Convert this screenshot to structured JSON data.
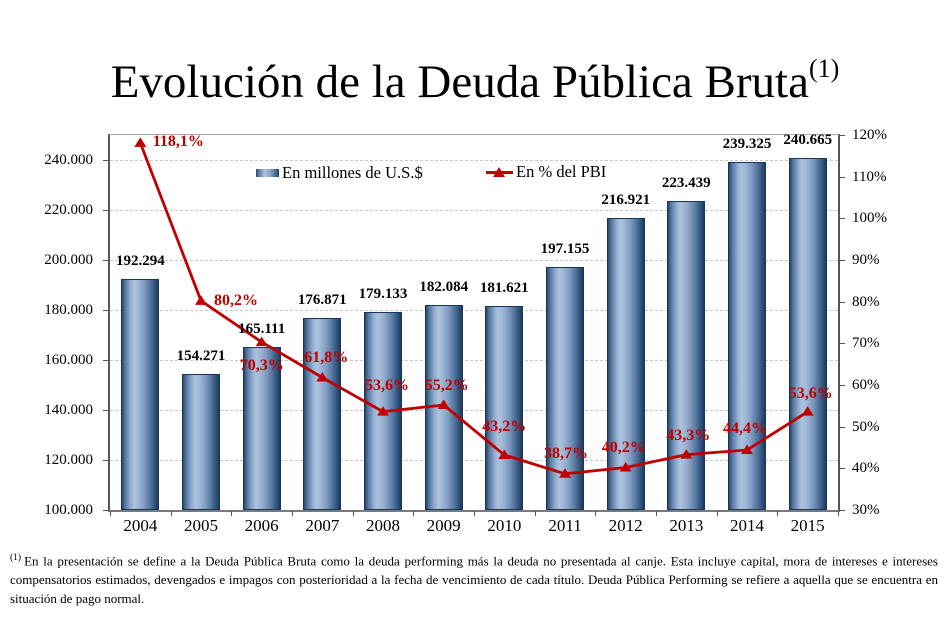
{
  "title": {
    "text": "Evolución de la Deuda Pública Bruta",
    "superscript": "(1)"
  },
  "legend": [
    {
      "label": "En millones de U.S.$",
      "marker": "gradient-bar-swatch"
    },
    {
      "label": "En % del PBI",
      "marker": "red-line-triangle"
    }
  ],
  "footnote": {
    "superscript": "(1)",
    "text": "En la presentación se define a la Deuda Pública Bruta como la deuda performing más la deuda no presentada al canje. Esta incluye capital, mora de intereses e intereses compensatorios estimados, devengados e impagos con posterioridad a la fecha de vencimiento de cada título. Deuda Pública Performing se refiere a aquella que se encuentra en situación de pago normal."
  },
  "colors": {
    "line_red": "#c00000",
    "bar_border": "#17375e",
    "bar_light": "#acc3df",
    "bar_dark": "#1d3a5e",
    "gridline": "#c9c9c9",
    "axis_line": "#565656",
    "text": "#000000"
  },
  "chart_data": {
    "type": "bar+line combo",
    "categories": [
      "2004",
      "2005",
      "2006",
      "2007",
      "2008",
      "2009",
      "2010",
      "2011",
      "2012",
      "2013",
      "2014",
      "2015"
    ],
    "series": [
      {
        "name": "En millones de U.S.$",
        "type": "bar",
        "axis": "left",
        "values": [
          192294,
          154271,
          165111,
          176871,
          179133,
          182084,
          181621,
          197155,
          216921,
          223439,
          239325,
          240665
        ],
        "labels": [
          "192.294",
          "154.271",
          "165.111",
          "176.871",
          "179.133",
          "182.084",
          "181.621",
          "197.155",
          "216.921",
          "223.439",
          "239.325",
          "240.665"
        ]
      },
      {
        "name": "En % del PBI",
        "type": "line",
        "axis": "right",
        "values": [
          118.1,
          80.2,
          70.3,
          61.8,
          53.6,
          55.2,
          43.2,
          38.7,
          40.2,
          43.3,
          44.4,
          53.6
        ],
        "labels": [
          "118,1%",
          "80,2%",
          "70,3%",
          "61,8%",
          "53,6%",
          "55,2%",
          "43,2%",
          "38,7%",
          "40,2%",
          "43,3%",
          "44,4%",
          "53,6%"
        ],
        "label_offsets": [
          [
            38,
            -1
          ],
          [
            35,
            0
          ],
          [
            0,
            24
          ],
          [
            4,
            -20
          ],
          [
            4,
            -26
          ],
          [
            3,
            -19
          ],
          [
            0,
            -28
          ],
          [
            1,
            -20
          ],
          [
            -2,
            -20
          ],
          [
            2,
            -19
          ],
          [
            -2,
            -21
          ],
          [
            3,
            -18
          ]
        ]
      }
    ],
    "left_axis": {
      "min": 100000,
      "max": 250000,
      "tick_step": 20000,
      "tick_values": [
        100000,
        120000,
        140000,
        160000,
        180000,
        200000,
        220000,
        240000
      ],
      "tick_labels": [
        "100.000",
        "120.000",
        "140.000",
        "160.000",
        "180.000",
        "200.000",
        "220.000",
        "240.000"
      ]
    },
    "right_axis": {
      "min": 30,
      "max": 120,
      "tick_step": 10,
      "tick_values": [
        30,
        40,
        50,
        60,
        70,
        80,
        90,
        100,
        110,
        120
      ],
      "tick_labels": [
        "30%",
        "40%",
        "50%",
        "60%",
        "70%",
        "80%",
        "90%",
        "100%",
        "110%",
        "120%"
      ]
    },
    "grid": "horizontal dashed gridlines at left-axis major ticks",
    "legend_position": "inside-top"
  }
}
